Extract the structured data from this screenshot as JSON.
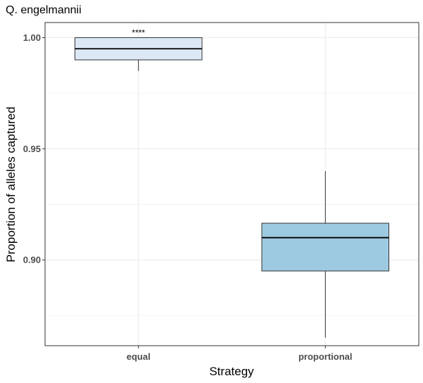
{
  "chart_data": {
    "type": "boxplot",
    "title": "Q. engelmannii",
    "xlabel": "Strategy",
    "ylabel": "Proportion of alleles captured",
    "categories": [
      "equal",
      "proportional"
    ],
    "boxes": [
      {
        "category": "equal",
        "whisker_low": 0.985,
        "q1": 0.99,
        "median": 0.995,
        "q3": 1.0,
        "whisker_high": 1.0,
        "fill": "#dce8f5",
        "annotation": "****"
      },
      {
        "category": "proportional",
        "whisker_low": 0.865,
        "q1": 0.895,
        "median": 0.91,
        "q3": 0.9165,
        "whisker_high": 0.94,
        "fill": "#9ecae1",
        "annotation": ""
      }
    ],
    "y_ticks": [
      {
        "value": 0.9,
        "label": "0.90"
      },
      {
        "value": 0.95,
        "label": "0.95"
      },
      {
        "value": 1.0,
        "label": "1.00"
      }
    ],
    "y_minor_ticks": [
      0.875,
      0.925,
      0.975
    ],
    "ylim": [
      0.8614,
      1.0068
    ],
    "grid": true
  }
}
